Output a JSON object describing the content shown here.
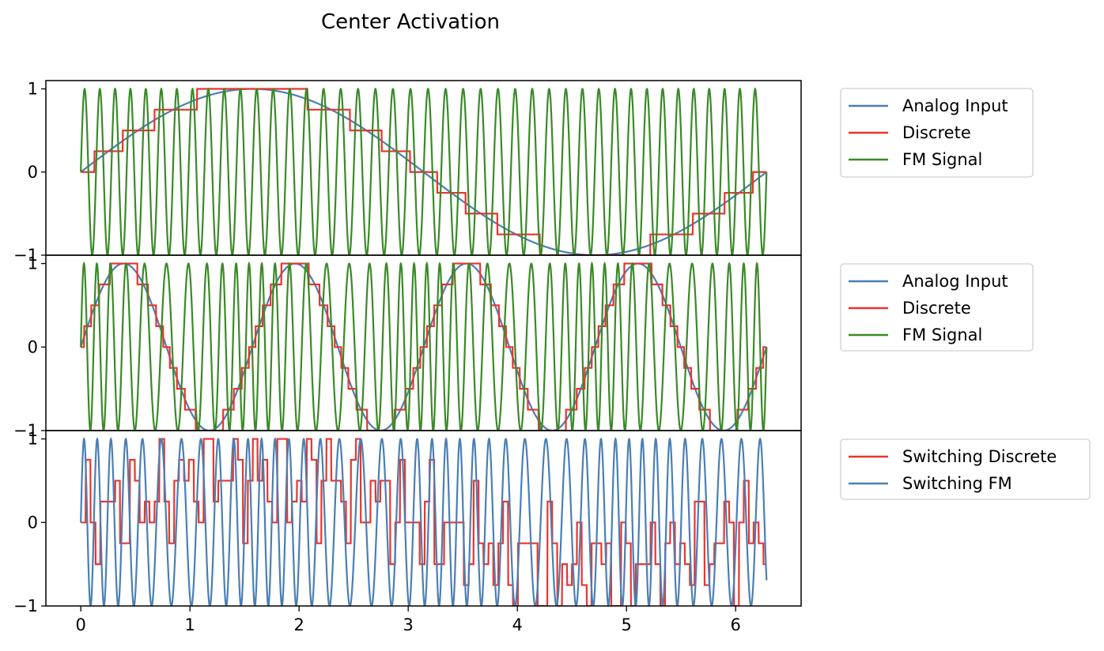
{
  "chart_data": {
    "type": "line",
    "title": "Center Activation",
    "xlabel": "",
    "ylabel": "",
    "xlim": [
      -0.32,
      6.6
    ],
    "x_ticks": [
      0,
      1,
      2,
      3,
      4,
      5,
      6
    ],
    "y_ticks": [
      -1,
      0,
      1
    ],
    "grid": false,
    "shared_x": true,
    "subplots": [
      {
        "ylim": [
          -1.0,
          1.1
        ],
        "legend_position": "outside-right-top",
        "series": [
          {
            "name": "Analog Input",
            "color": "#4a7fb5",
            "kind": "analog",
            "frequency": 1
          },
          {
            "name": "Discrete",
            "color": "#e8352e",
            "kind": "discrete",
            "frequency": 1,
            "levels": 4
          },
          {
            "name": "FM Signal",
            "color": "#3a8a27",
            "kind": "fm",
            "frequency": 1,
            "carrier_cycles": 42
          }
        ]
      },
      {
        "ylim": [
          -1.0,
          1.1
        ],
        "legend_position": "outside-right-top",
        "series": [
          {
            "name": "Analog Input",
            "color": "#4a7fb5",
            "kind": "analog",
            "frequency": 4
          },
          {
            "name": "Discrete",
            "color": "#e8352e",
            "kind": "discrete",
            "frequency": 4,
            "levels": 4
          },
          {
            "name": "FM Signal",
            "color": "#3a8a27",
            "kind": "fm",
            "frequency": 4,
            "carrier_cycles": 42
          }
        ]
      },
      {
        "ylim": [
          -1.0,
          1.1
        ],
        "legend_position": "outside-right-top",
        "series": [
          {
            "name": "Switching Discrete",
            "color": "#e8352e",
            "kind": "switching-discrete"
          },
          {
            "name": "Switching FM",
            "color": "#4a7fb5",
            "kind": "switching-fm",
            "carrier_cycles": 42
          }
        ]
      }
    ]
  }
}
